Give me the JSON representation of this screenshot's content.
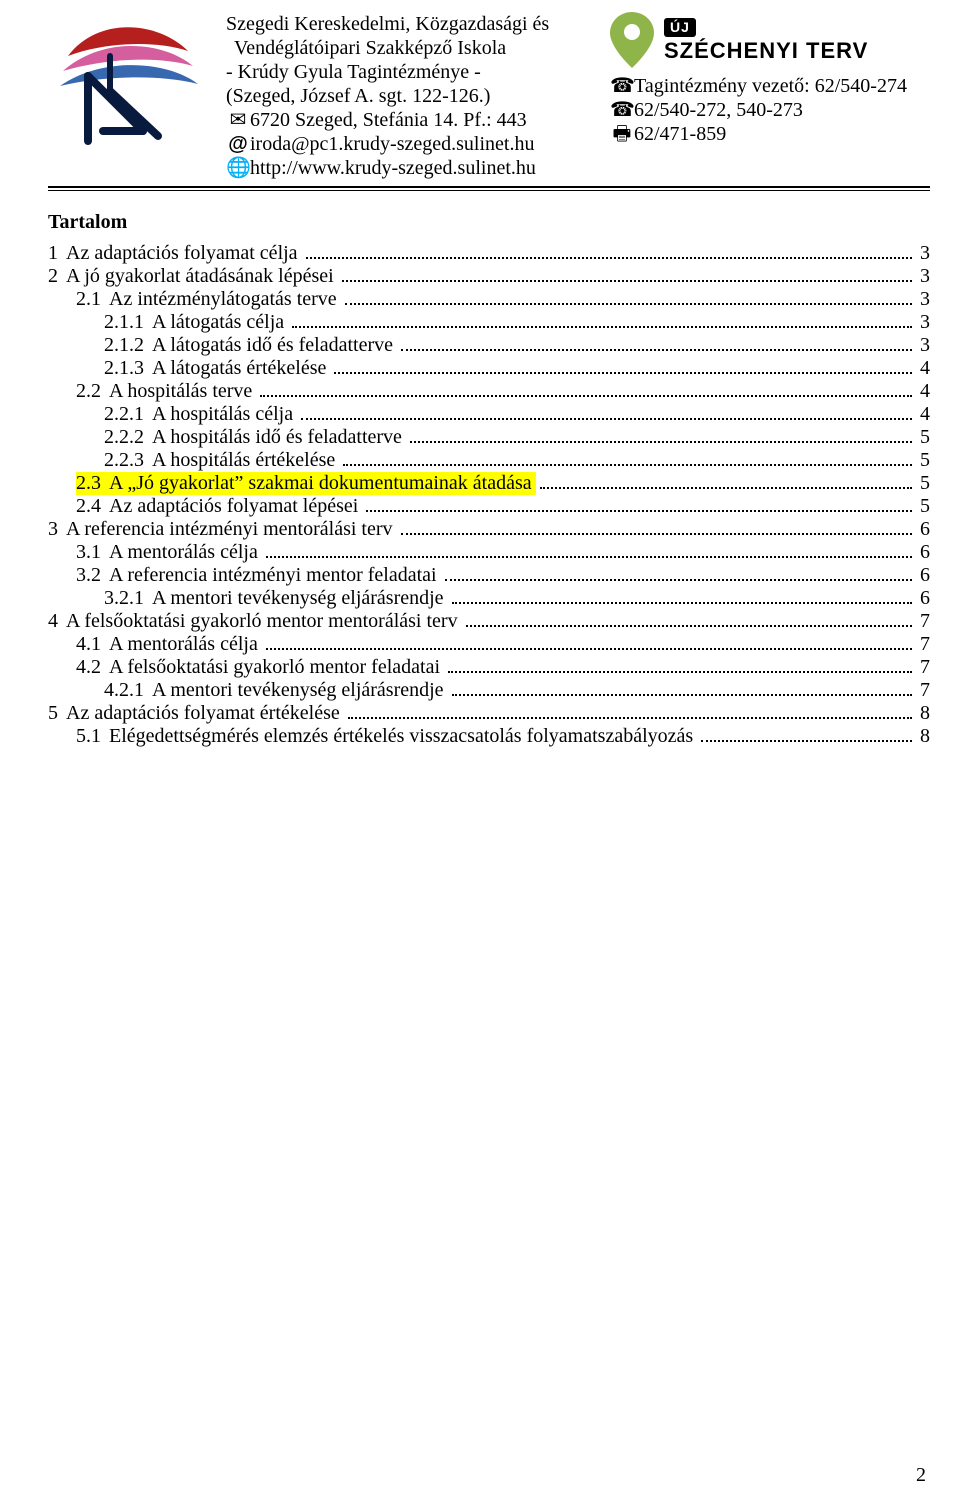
{
  "header": {
    "school_lines": [
      "Szegedi Kereskedelmi, Közgazdasági és",
      "Vendéglátóipari Szakképző Iskola",
      "- Krúdy Gyula Tagintézménye -",
      "(Szeged, József A. sgt. 122-126.)"
    ],
    "postal": "6720 Szeged, Stefánia 14. Pf.: 443",
    "email": "iroda@pc1.krudy-szeged.sulinet.hu",
    "web": "http://www.krudy-szeged.sulinet.hu",
    "phone_leader_label": "Tagintézmény vezető: 62/540-274",
    "phone_office": "62/540-272, 540-273",
    "fax": "62/471-859",
    "sz_small": "ÚJ",
    "sz_big": "SZÉCHENYI TERV"
  },
  "toc_title": "Tartalom",
  "toc": [
    {
      "num": "1",
      "label": "Az adaptációs folyamat célja",
      "page": "3",
      "lvl": 1,
      "hl": false
    },
    {
      "num": "2",
      "label": "A jó gyakorlat átadásának lépései",
      "page": "3",
      "lvl": 1,
      "hl": false
    },
    {
      "num": "2.1",
      "label": "Az intézménylátogatás terve",
      "page": "3",
      "lvl": 2,
      "hl": false
    },
    {
      "num": "2.1.1",
      "label": "A látogatás célja",
      "page": "3",
      "lvl": 3,
      "hl": false
    },
    {
      "num": "2.1.2",
      "label": "A látogatás idő és feladatterve",
      "page": "3",
      "lvl": 3,
      "hl": false
    },
    {
      "num": "2.1.3",
      "label": "A látogatás értékelése",
      "page": "4",
      "lvl": 3,
      "hl": false
    },
    {
      "num": "2.2",
      "label": "A hospitálás terve",
      "page": "4",
      "lvl": 2,
      "hl": false
    },
    {
      "num": "2.2.1",
      "label": "A hospitálás célja",
      "page": "4",
      "lvl": 3,
      "hl": false
    },
    {
      "num": "2.2.2",
      "label": "A hospitálás idő és feladatterve",
      "page": "5",
      "lvl": 3,
      "hl": false
    },
    {
      "num": "2.2.3",
      "label": "A hospitálás értékelése",
      "page": "5",
      "lvl": 3,
      "hl": false
    },
    {
      "num": "2.3",
      "label": "A „Jó gyakorlat” szakmai dokumentumainak átadása",
      "page": "5",
      "lvl": 2,
      "hl": true
    },
    {
      "num": "2.4",
      "label": "Az adaptációs folyamat lépései",
      "page": "5",
      "lvl": 2,
      "hl": false
    },
    {
      "num": "3",
      "label": "A referencia intézményi mentorálási terv",
      "page": "6",
      "lvl": 1,
      "hl": false
    },
    {
      "num": "3.1",
      "label": "A mentorálás célja",
      "page": "6",
      "lvl": 2,
      "hl": false
    },
    {
      "num": "3.2",
      "label": "A referencia intézményi mentor feladatai",
      "page": "6",
      "lvl": 2,
      "hl": false
    },
    {
      "num": "3.2.1",
      "label": "A mentori tevékenység eljárásrendje",
      "page": "6",
      "lvl": 3,
      "hl": false
    },
    {
      "num": "4",
      "label": "A felsőoktatási gyakorló mentor mentorálási terv",
      "page": "7",
      "lvl": 1,
      "hl": false
    },
    {
      "num": "4.1",
      "label": "A mentorálás célja",
      "page": "7",
      "lvl": 2,
      "hl": false
    },
    {
      "num": "4.2",
      "label": "A felsőoktatási gyakorló mentor feladatai",
      "page": "7",
      "lvl": 2,
      "hl": false
    },
    {
      "num": "4.2.1",
      "label": "A mentori tevékenység eljárásrendje",
      "page": "7",
      "lvl": 3,
      "hl": false
    },
    {
      "num": "5",
      "label": "Az adaptációs folyamat értékelése",
      "page": "8",
      "lvl": 1,
      "hl": false
    },
    {
      "num": "5.1",
      "label": "Elégedettségmérés elemzés értékelés visszacsatolás folyamatszabályozás",
      "page": "8",
      "lvl": 2,
      "hl": false
    }
  ],
  "page_number": "2",
  "colors": {
    "highlight": "#ffff00",
    "logo_red": "#b5201f",
    "logo_pink": "#d55e9e",
    "logo_blue": "#3869b0",
    "logo_navy": "#091a3f",
    "sz_pin": "#8fb54a"
  }
}
